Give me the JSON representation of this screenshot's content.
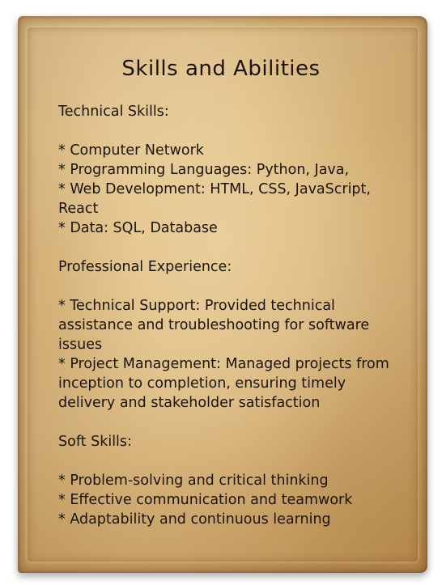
{
  "title": "Skills and Abilities",
  "sections": {
    "technical": {
      "heading": "Technical Skills:",
      "items": [
        "* Computer Network",
        "* Programming Languages: Python, Java,",
        "* Web Development: HTML, CSS, JavaScript, React",
        "* Data: SQL, Database"
      ]
    },
    "experience": {
      "heading": "Professional Experience:",
      "items": [
        "* Technical Support: Provided technical assistance and troubleshooting for software issues",
        "* Project Management: Managed projects from inception to completion, ensuring timely delivery and stakeholder satisfaction"
      ]
    },
    "soft": {
      "heading": "Soft Skills:",
      "items": [
        "* Problem-solving and critical thinking",
        "* Effective communication and teamwork",
        "* Adaptability and continuous learning"
      ]
    }
  }
}
